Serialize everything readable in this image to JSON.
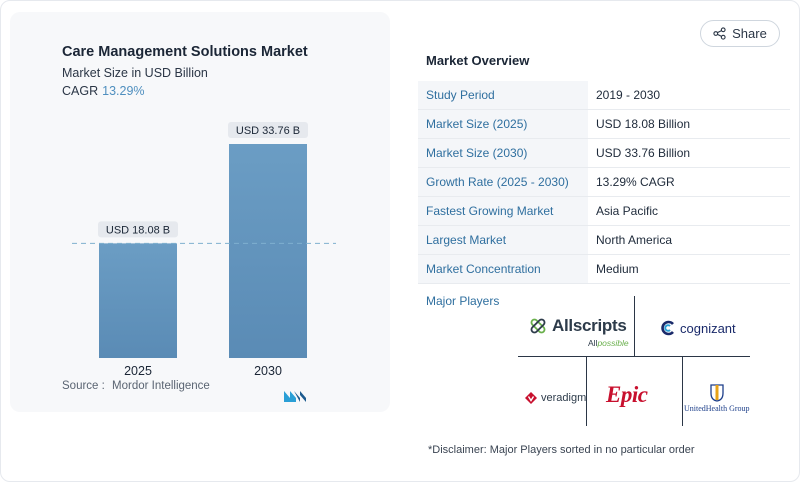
{
  "share": {
    "label": "Share"
  },
  "chart": {
    "title": "Care Management Solutions Market",
    "subtitle": "Market Size in USD Billion",
    "cagr_label": "CAGR",
    "cagr_value": "13.29%",
    "source_label": "Source :",
    "source_value": "Mordor Intelligence"
  },
  "chart_data": {
    "type": "bar",
    "title": "Care Management Solutions Market",
    "subtitle": "Market Size in USD Billion",
    "categories": [
      "2025",
      "2030"
    ],
    "values": [
      18.08,
      33.76
    ],
    "data_labels": [
      "USD 18.08 B",
      "USD 33.76 B"
    ],
    "xlabel": "",
    "ylabel": "",
    "ylim": [
      0,
      33.76
    ],
    "grid": false,
    "reference_line": {
      "value": 18.08,
      "style": "dashed"
    },
    "colors": {
      "bar_top": "#6b9dc4",
      "bar_bottom": "#5a8bb5",
      "label_bg": "#e6e9ee",
      "reference": "#7fb0cf"
    }
  },
  "overview": {
    "title": "Market Overview",
    "rows": [
      {
        "key": "Study Period",
        "value": "2019 - 2030"
      },
      {
        "key": "Market Size (2025)",
        "value": "USD 18.08 Billion"
      },
      {
        "key": "Market Size (2030)",
        "value": "USD 33.76 Billion"
      },
      {
        "key": "Growth Rate (2025 - 2030)",
        "value": "13.29% CAGR"
      },
      {
        "key": "Fastest Growing Market",
        "value": "Asia Pacific"
      },
      {
        "key": "Largest Market",
        "value": "North America"
      },
      {
        "key": "Market Concentration",
        "value": "Medium"
      }
    ]
  },
  "players": {
    "label": "Major Players",
    "allscripts": {
      "name": "Allscripts",
      "tag_a": "All",
      "tag_b": "possible",
      "icon": "allscripts-logo-icon"
    },
    "cognizant": {
      "name": "cognizant",
      "icon": "cognizant-logo-icon"
    },
    "veradigm": {
      "name": "veradigm",
      "icon": "veradigm-logo-icon"
    },
    "epic": {
      "name": "Epic"
    },
    "unitedhealth": {
      "name": "UnitedHealth Group",
      "icon": "unitedhealth-logo-icon"
    }
  },
  "disclaimer": "*Disclaimer: Major Players sorted in no particular order"
}
